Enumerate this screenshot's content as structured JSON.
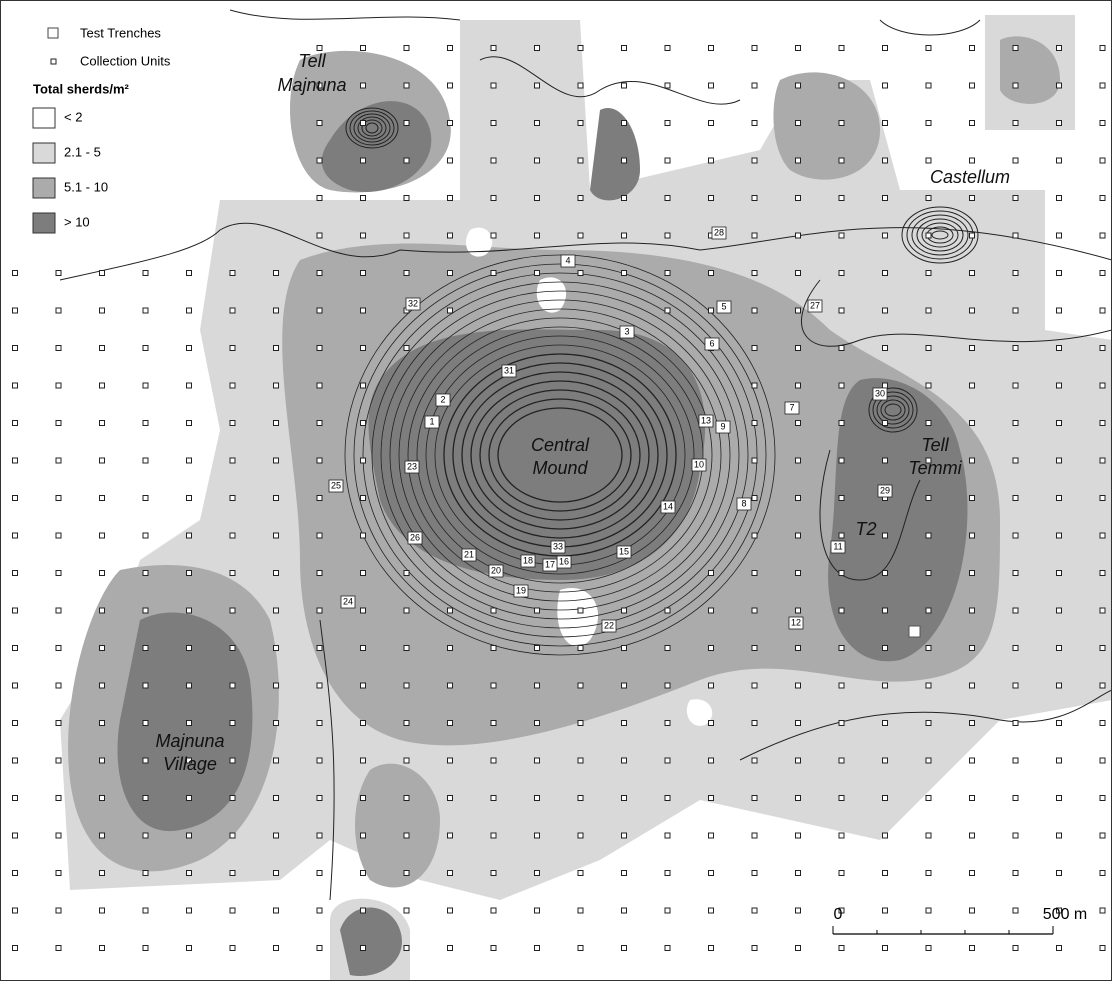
{
  "legend": {
    "symbols": [
      {
        "label": "Test Trenches"
      },
      {
        "label": "Collection Units"
      }
    ],
    "title": "Total sherds/m²",
    "classes": [
      {
        "label": "< 2",
        "color": "#ffffff"
      },
      {
        "label": "2.1 - 5",
        "color": "#d9d9d9"
      },
      {
        "label": "5.1 - 10",
        "color": "#ababab"
      },
      {
        "label": "> 10",
        "color": "#7d7d7d"
      }
    ]
  },
  "place_labels": [
    {
      "lines": [
        "Tell",
        "Majnuna"
      ]
    },
    {
      "lines": [
        "Castellum"
      ]
    },
    {
      "lines": [
        "Central",
        "Mound"
      ]
    },
    {
      "lines": [
        "Tell",
        "Temmi"
      ]
    },
    {
      "lines": [
        "T2"
      ]
    },
    {
      "lines": [
        "Majnuna",
        "Village"
      ]
    }
  ],
  "trenches": [
    "1",
    "2",
    "3",
    "4",
    "5",
    "6",
    "7",
    "8",
    "9",
    "10",
    "11",
    "12",
    "13",
    "14",
    "15",
    "16",
    "17",
    "18",
    "19",
    "20",
    "21",
    "22",
    "23",
    "24",
    "25",
    "26",
    "27",
    "28",
    "29",
    "30",
    "31",
    "32",
    "33"
  ],
  "scale_bar": {
    "labels": [
      "0",
      "500 m"
    ]
  }
}
